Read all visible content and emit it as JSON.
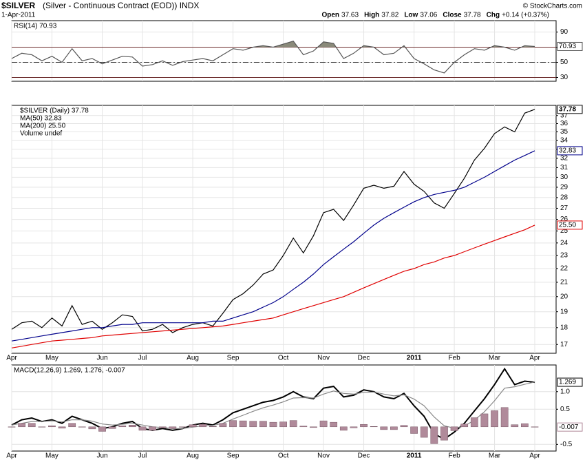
{
  "header": {
    "symbol": "$SILVER",
    "description": "(Silver - Continuous Contract (EOD)) INDX",
    "date": "1-Apr-2011",
    "quote": [
      {
        "label": "Open",
        "value": 37.63
      },
      {
        "label": "High",
        "value": 37.82
      },
      {
        "label": "Low",
        "value": 37.06
      },
      {
        "label": "Close",
        "value": 37.78
      },
      {
        "label": "Chg",
        "value": "+0.14 (+0.37%)"
      }
    ],
    "credit": "© StockCharts.com"
  },
  "chart_data": [
    {
      "type": "line",
      "title": "RSI(14) 70.93",
      "ylim": [
        25,
        105
      ],
      "yticks": [
        30,
        50,
        70,
        90
      ],
      "grid": true,
      "levels": {
        "solid": [
          70,
          30
        ],
        "dashed": [
          50
        ]
      },
      "shade_above": 70,
      "series": [
        {
          "color": "#555555",
          "last_label": "70.93",
          "values": [
            55,
            62,
            60,
            52,
            58,
            50,
            68,
            52,
            55,
            48,
            53,
            58,
            57,
            45,
            47,
            52,
            46,
            51,
            53,
            55,
            52,
            60,
            68,
            66,
            70,
            72,
            70,
            74,
            78,
            60,
            65,
            77,
            75,
            55,
            62,
            72,
            70,
            60,
            62,
            72,
            55,
            48,
            40,
            36,
            50,
            60,
            68,
            66,
            72,
            70,
            66,
            72,
            70.93
          ]
        }
      ]
    },
    {
      "type": "line",
      "log": true,
      "ylim": [
        16.5,
        38.3
      ],
      "grid": true,
      "legend": "top-left",
      "yticks": [
        17,
        18,
        19,
        20,
        21,
        22,
        23,
        24,
        25,
        26,
        27,
        28,
        29,
        30,
        31,
        32,
        33,
        34,
        35,
        36,
        37
      ],
      "categories": [
        "Apr",
        null,
        null,
        null,
        "May",
        null,
        null,
        null,
        null,
        "Jun",
        null,
        null,
        null,
        "Jul",
        null,
        null,
        null,
        null,
        "Aug",
        null,
        null,
        null,
        "Sep",
        null,
        null,
        null,
        null,
        "Oct",
        null,
        null,
        null,
        "Nov",
        null,
        null,
        null,
        "Dec",
        null,
        null,
        null,
        null,
        "2011",
        null,
        null,
        null,
        "Feb",
        null,
        null,
        null,
        "Mar",
        null,
        null,
        null,
        "Apr"
      ],
      "legend_extra": {
        "text": "Volume undef",
        "color": "#2e7d32"
      },
      "series": [
        {
          "name": "$SILVER (Daily) 37.78",
          "color": "#000000",
          "last_label": "37.78",
          "values": [
            17.9,
            18.3,
            18.4,
            18.0,
            18.6,
            18.1,
            19.4,
            18.2,
            18.4,
            17.9,
            18.3,
            18.8,
            18.7,
            17.8,
            17.9,
            18.2,
            17.7,
            18.0,
            18.2,
            18.3,
            18.1,
            18.9,
            19.8,
            20.2,
            20.8,
            21.6,
            21.9,
            23.0,
            24.4,
            23.2,
            24.6,
            26.6,
            26.9,
            25.9,
            27.3,
            28.9,
            29.2,
            28.9,
            29.1,
            30.6,
            29.3,
            28.6,
            27.5,
            27.0,
            28.4,
            29.9,
            31.8,
            33.1,
            34.8,
            35.6,
            35.0,
            37.3,
            37.78
          ]
        },
        {
          "name": "MA(50) 32.83",
          "color": "#00008b",
          "last_label": "32.83",
          "values": [
            17.2,
            17.3,
            17.4,
            17.5,
            17.6,
            17.7,
            17.8,
            17.9,
            18.0,
            18.0,
            18.1,
            18.2,
            18.2,
            18.3,
            18.3,
            18.3,
            18.3,
            18.3,
            18.3,
            18.3,
            18.4,
            18.4,
            18.6,
            18.8,
            19.0,
            19.3,
            19.6,
            20.0,
            20.5,
            21.0,
            21.6,
            22.3,
            22.9,
            23.5,
            24.1,
            24.8,
            25.5,
            26.1,
            26.6,
            27.1,
            27.6,
            28.0,
            28.3,
            28.5,
            28.7,
            29.0,
            29.5,
            30.0,
            30.6,
            31.2,
            31.8,
            32.3,
            32.83
          ]
        },
        {
          "name": "MA(200) 25.50",
          "color": "#e00000",
          "last_label": "25.50",
          "values": [
            16.8,
            16.9,
            17.0,
            17.1,
            17.2,
            17.25,
            17.3,
            17.35,
            17.4,
            17.5,
            17.55,
            17.6,
            17.65,
            17.7,
            17.75,
            17.8,
            17.85,
            17.9,
            17.95,
            18.0,
            18.05,
            18.1,
            18.2,
            18.3,
            18.4,
            18.5,
            18.6,
            18.8,
            19.0,
            19.2,
            19.4,
            19.6,
            19.8,
            20.0,
            20.3,
            20.6,
            20.9,
            21.2,
            21.5,
            21.8,
            22.0,
            22.3,
            22.5,
            22.8,
            23.0,
            23.3,
            23.6,
            23.9,
            24.2,
            24.5,
            24.8,
            25.1,
            25.5
          ]
        }
      ]
    },
    {
      "type": "macd",
      "title": "MACD(12,26,9) 1.269, 1.276, -0.007",
      "ylim": [
        -0.69,
        1.76
      ],
      "grid": true,
      "yticks": [
        -0.5,
        0.5,
        {
          "value": 1,
          "label": "1.0"
        }
      ],
      "series": [
        {
          "color": "#000000",
          "last_label": "1.269",
          "values": [
            0.05,
            0.2,
            0.25,
            0.15,
            0.2,
            0.1,
            0.3,
            0.2,
            0.1,
            -0.05,
            0,
            0.1,
            0.15,
            -0.05,
            -0.1,
            -0.05,
            -0.1,
            -0.05,
            0.05,
            0.1,
            0.05,
            0.2,
            0.4,
            0.5,
            0.6,
            0.7,
            0.75,
            0.85,
            1.0,
            0.85,
            0.8,
            1.1,
            1.15,
            0.85,
            0.9,
            1.05,
            1.0,
            0.85,
            0.8,
            0.95,
            0.6,
            0.3,
            -0.2,
            -0.35,
            -0.15,
            0.1,
            0.45,
            0.8,
            1.2,
            1.65,
            1.2,
            1.3,
            1.269
          ]
        },
        {
          "color": "#888888",
          "values": [
            0.05,
            0.1,
            0.15,
            0.15,
            0.17,
            0.14,
            0.2,
            0.2,
            0.16,
            0.08,
            0.05,
            0.07,
            0.1,
            0.05,
            0,
            -0.02,
            -0.05,
            -0.05,
            -0.01,
            0.03,
            0.04,
            0.1,
            0.22,
            0.33,
            0.44,
            0.54,
            0.62,
            0.71,
            0.82,
            0.83,
            0.82,
            0.93,
            1.02,
            0.95,
            0.93,
            0.98,
            0.99,
            0.93,
            0.88,
            0.91,
            0.79,
            0.6,
            0.28,
            0.03,
            -0.04,
            0.02,
            0.19,
            0.43,
            0.74,
            1.1,
            1.14,
            1.21,
            1.276
          ]
        },
        {
          "kind": "histogram",
          "color": "#b08a9a",
          "last_label": "-0.007",
          "values": [
            0,
            0.1,
            0.1,
            0,
            0.03,
            -0.04,
            0.1,
            0,
            -0.06,
            -0.13,
            -0.05,
            0.03,
            0.05,
            -0.1,
            -0.1,
            -0.03,
            -0.05,
            0,
            0.06,
            0.07,
            0.01,
            0.1,
            0.18,
            0.17,
            0.16,
            0.16,
            0.13,
            0.14,
            0.18,
            0.02,
            -0.02,
            0.17,
            0.13,
            -0.1,
            -0.03,
            0.07,
            0.01,
            -0.08,
            -0.08,
            0.04,
            -0.19,
            -0.3,
            -0.48,
            -0.38,
            -0.11,
            0.08,
            0.26,
            0.37,
            0.46,
            0.55,
            0.06,
            0.09,
            -0.007
          ]
        }
      ]
    }
  ]
}
